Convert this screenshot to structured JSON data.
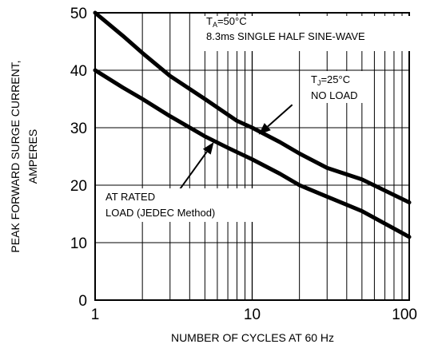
{
  "chart_data": {
    "type": "line",
    "xscale": "log",
    "xlim": [
      1,
      100
    ],
    "ylim": [
      0,
      50
    ],
    "xlabel": "NUMBER OF CYCLES AT 60 Hz",
    "ylabel_line1": "PEAK FORWARD SURGE CURRENT,",
    "ylabel_line2": "AMPERES",
    "x_ticks": [
      {
        "value": 1,
        "label": "1"
      },
      {
        "value": 10,
        "label": "10"
      },
      {
        "value": 100,
        "label": "100"
      }
    ],
    "y_ticks": [
      {
        "value": 0,
        "label": "0"
      },
      {
        "value": 10,
        "label": "10"
      },
      {
        "value": 20,
        "label": "20"
      },
      {
        "value": 30,
        "label": "30"
      },
      {
        "value": 40,
        "label": "40"
      },
      {
        "value": 50,
        "label": "50"
      }
    ],
    "grid": true,
    "series": [
      {
        "key": "no_load",
        "x": [
          1,
          1.5,
          2,
          3,
          5,
          8,
          10,
          15,
          20,
          30,
          50,
          100
        ],
        "values": [
          50,
          46,
          43,
          39,
          35,
          31.2,
          30,
          27.5,
          25.5,
          23,
          21,
          17
        ]
      },
      {
        "key": "rated_load",
        "x": [
          1,
          1.5,
          2,
          3,
          5,
          7,
          10,
          15,
          20,
          30,
          50,
          100
        ],
        "values": [
          40,
          37,
          35,
          32,
          28.5,
          26.5,
          24.5,
          22,
          20,
          18,
          15.5,
          11
        ]
      }
    ],
    "annotations": {
      "ta": {
        "prefix": "T",
        "sub": "A",
        "suffix": "=50°C"
      },
      "waveform": "8.3ms SINGLE HALF SINE-WAVE",
      "tj": {
        "prefix": "T",
        "sub": "J",
        "suffix": "=25°C"
      },
      "no_load": "NO LOAD",
      "rated_line1": "AT RATED",
      "rated_line2": "LOAD (JEDEC Method)"
    },
    "arrows": [
      {
        "target": "no_load",
        "from": [
          18,
          34
        ],
        "to": [
          11,
          28.8
        ]
      },
      {
        "target": "rated_load",
        "from": [
          3.3,
          18.5
        ],
        "to": [
          5.7,
          27.5
        ]
      }
    ]
  }
}
